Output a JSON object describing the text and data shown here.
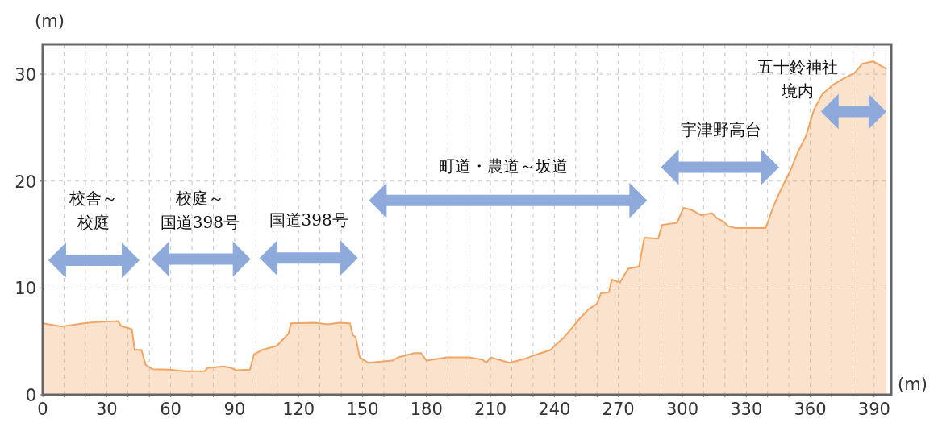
{
  "chart_data": {
    "type": "area",
    "xlabel": "(m)",
    "ylabel": "(m)",
    "xlim": [
      0,
      398
    ],
    "ylim": [
      0,
      32.8
    ],
    "xticks": [
      0,
      {
        "value": 10,
        "label": null
      },
      {
        "value": 20,
        "label": null
      },
      30,
      {
        "value": 40,
        "label": null
      },
      {
        "value": 50,
        "label": null
      },
      60,
      {
        "value": 70,
        "label": null
      },
      {
        "value": 80,
        "label": null
      },
      90,
      {
        "value": 100,
        "label": null
      },
      {
        "value": 110,
        "label": null
      },
      120,
      {
        "value": 130,
        "label": null
      },
      {
        "value": 140,
        "label": null
      },
      150,
      {
        "value": 160,
        "label": null
      },
      {
        "value": 170,
        "label": null
      },
      180,
      {
        "value": 190,
        "label": null
      },
      {
        "value": 200,
        "label": null
      },
      210,
      {
        "value": 220,
        "label": null
      },
      {
        "value": 230,
        "label": null
      },
      240,
      {
        "value": 250,
        "label": null
      },
      {
        "value": 260,
        "label": null
      },
      270,
      {
        "value": 280,
        "label": null
      },
      {
        "value": 290,
        "label": null
      },
      300,
      {
        "value": 310,
        "label": null
      },
      {
        "value": 320,
        "label": null
      },
      330,
      {
        "value": 340,
        "label": null
      },
      {
        "value": 350,
        "label": null
      },
      360,
      {
        "value": 370,
        "label": null
      },
      {
        "value": 380,
        "label": null
      },
      390
    ],
    "yticks": [
      0,
      10,
      20,
      30
    ],
    "grid": true,
    "series": [
      {
        "color": "#f2a462",
        "x": [
          0,
          9,
          19.3,
          24.5,
          35.4,
          36.7,
          41.8,
          43.1,
          46.3,
          48.3,
          51.5,
          59.2,
          66.9,
          75.9,
          77.2,
          84.9,
          88.7,
          90.7,
          97.2,
          99.1,
          103,
          110,
          111.3,
          115.2,
          116.5,
          127.4,
          133.8,
          139,
          144.1,
          145.4,
          146.8,
          148.7,
          152.6,
          164,
          166.6,
          174.3,
          177.5,
          180,
          189.6,
          199.9,
          206.2,
          208.1,
          210,
          219,
          226.6,
          230.5,
          238.2,
          240.7,
          244.6,
          248.4,
          252.2,
          256,
          259.9,
          261.8,
          265.6,
          266.9,
          270.7,
          274.6,
          279.7,
          282.2,
          288.7,
          290.5,
          297.5,
          300.6,
          304.4,
          308.8,
          313.9,
          316.4,
          319.5,
          321.4,
          325.2,
          339.1,
          342.9,
          346.7,
          350.5,
          354.2,
          358,
          361.8,
          365.6,
          370.6,
          375.7,
          380.7,
          384.5,
          389.5,
          395.8
        ],
        "values": [
          6.7,
          6.4,
          6.7,
          6.8,
          6.9,
          6.45,
          6.15,
          4.2,
          4.2,
          2.8,
          2.4,
          2.35,
          2.2,
          2.2,
          2.5,
          2.65,
          2.5,
          2.3,
          2.35,
          3.8,
          4.2,
          4.6,
          4.9,
          5.7,
          6.7,
          6.75,
          6.6,
          6.75,
          6.7,
          5.6,
          5.4,
          3.5,
          3.0,
          3.2,
          3.5,
          3.9,
          3.9,
          3.2,
          3.5,
          3.5,
          3.3,
          3.0,
          3.5,
          3.0,
          3.4,
          3.7,
          4.2,
          4.7,
          5.4,
          6.3,
          7.2,
          8.0,
          8.5,
          9.5,
          9.6,
          10.8,
          10.5,
          11.8,
          12.0,
          14.7,
          14.6,
          15.9,
          16.1,
          17.5,
          17.3,
          16.8,
          17.0,
          16.5,
          16.2,
          15.8,
          15.6,
          15.6,
          17.7,
          19.4,
          20.9,
          22.7,
          24.2,
          26.7,
          28.1,
          29.0,
          29.6,
          30.1,
          31.0,
          31.2,
          30.5
        ]
      }
    ],
    "annotations": [
      "校舎～校庭",
      "校庭～国道398号",
      "国道398号",
      "町道・農道～坂道",
      "宇津野高台",
      "五十鈴神社境内"
    ]
  }
}
